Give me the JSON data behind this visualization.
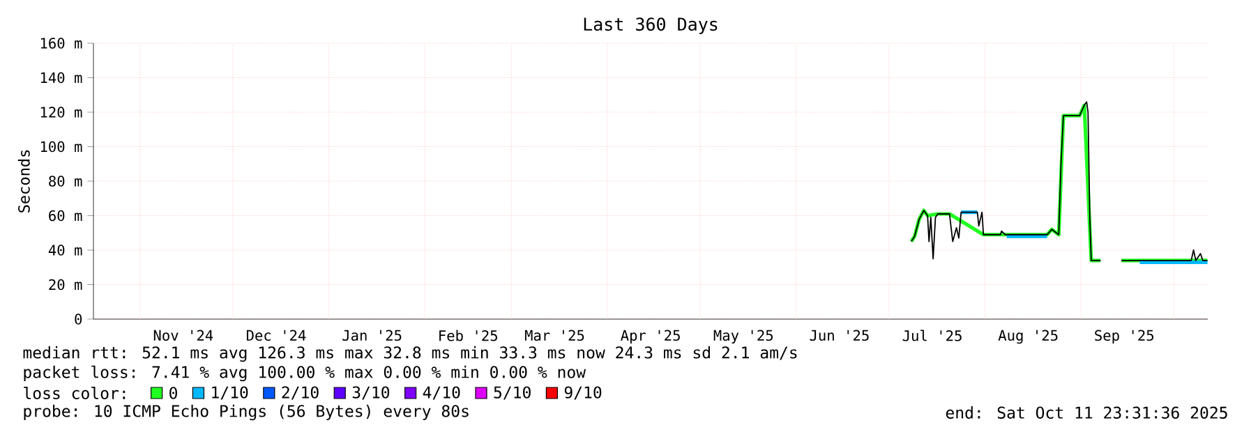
{
  "chart_data": {
    "type": "line",
    "title": "Last 360 Days",
    "ylabel": "Seconds",
    "xlim": [
      "2024-10-16T23:31",
      "2025-10-11T23:31"
    ],
    "xticks": [
      {
        "value": "2024-11-01",
        "label": null
      },
      {
        "value": "2024-12-01",
        "label": null
      },
      {
        "value": "2025-01-01",
        "label": null
      },
      {
        "value": "2025-02-01",
        "label": null
      },
      {
        "value": "2025-03-01",
        "label": null
      },
      {
        "value": "2025-04-01",
        "label": null
      },
      {
        "value": "2025-05-01",
        "label": null
      },
      {
        "value": "2025-06-01",
        "label": null
      },
      {
        "value": "2025-07-01",
        "label": null
      },
      {
        "value": "2025-08-01",
        "label": null
      },
      {
        "value": "2025-09-01",
        "label": null
      },
      {
        "value": "2025-10-01",
        "label": null
      },
      {
        "value": "2024-11-15",
        "label": "Nov '24"
      },
      {
        "value": "2024-12-15",
        "label": "Dec '24"
      },
      {
        "value": "2025-01-15",
        "label": "Jan '25"
      },
      {
        "value": "2025-02-15",
        "label": "Feb '25"
      },
      {
        "value": "2025-03-15",
        "label": "Mar '25"
      },
      {
        "value": "2025-04-15",
        "label": "Apr '25"
      },
      {
        "value": "2025-05-15",
        "label": "May '25"
      },
      {
        "value": "2025-06-15",
        "label": "Jun '25"
      },
      {
        "value": "2025-07-15",
        "label": "Jul '25"
      },
      {
        "value": "2025-08-15",
        "label": "Aug '25"
      },
      {
        "value": "2025-09-15",
        "label": "Sep '25"
      }
    ],
    "ylim": [
      0,
      160
    ],
    "yticks": [
      {
        "value": 0,
        "label": "0"
      },
      {
        "value": 20,
        "label": "20 m"
      },
      {
        "value": 40,
        "label": "40 m"
      },
      {
        "value": 60,
        "label": "60 m"
      },
      {
        "value": 80,
        "label": "80 m"
      },
      {
        "value": 100,
        "label": "100 m"
      },
      {
        "value": 120,
        "label": "120 m"
      },
      {
        "value": 140,
        "label": "140 m"
      },
      {
        "value": 160,
        "label": "160 m"
      }
    ],
    "grid": true,
    "legend": "bottom",
    "legend_title": "loss color:",
    "line_style": "solid",
    "series": [
      {
        "name": "0",
        "color": "#20ff20",
        "x": [
          "2025-07-08T05:00",
          "2025-07-09T06:00",
          "2025-07-10T18:00",
          "2025-07-12T06:00",
          "2025-07-13T11:00",
          "2025-07-16T18:00",
          "2025-07-20T13:00",
          "2025-07-31T12:00",
          "2025-08-21T02:00",
          "2025-08-22T14:00",
          "2025-08-24T20:00",
          "2025-08-26T08:00",
          "2025-08-31T14:00",
          "2025-09-02T02:00",
          "2025-09-04T08:00",
          "2025-09-07T08:00",
          "2025-09-10",
          "2025-09-14T02:00",
          "2025-10-11T21:00"
        ],
        "values": [
          45,
          48,
          58,
          63,
          60,
          61,
          61,
          49,
          49,
          52,
          49,
          118,
          118,
          124,
          34,
          34,
          null,
          34,
          34
        ]
      },
      {
        "name": "1/10",
        "color": "#00b8ff",
        "x": [
          "2025-07-24T07:00",
          "2025-07-29T13:00",
          "2025-08-02",
          "2025-08-08T00:00",
          "2025-08-21T02:00",
          "2025-09-02",
          "2025-09-20T00:00",
          "2025-10-11T21:00"
        ],
        "values": [
          62,
          62,
          null,
          48,
          48,
          null,
          33,
          33
        ]
      },
      {
        "name": "2/10",
        "color": "#0059ff"
      },
      {
        "name": "3/10",
        "color": "#5e00ff"
      },
      {
        "name": "4/10",
        "color": "#7e00ff"
      },
      {
        "name": "5/10",
        "color": "#dd00ff"
      },
      {
        "name": "9/10",
        "color": "#ff0000"
      },
      {
        "color": "#000000",
        "x": [
          "2025-07-08T05:00",
          "2025-07-09T06:00",
          "2025-07-10T18:00",
          "2025-07-12T06:00",
          "2025-07-13T11:00",
          "2025-07-13T22:00",
          "2025-07-14T12:00",
          "2025-07-15T06:00",
          "2025-07-16T00:00",
          "2025-07-16T18:00",
          "2025-07-20T13:00",
          "2025-07-21T14:00",
          "2025-07-22T19:00",
          "2025-07-23T13:00",
          "2025-07-24T07:00",
          "2025-07-29T13:00",
          "2025-07-30T00:00",
          "2025-07-31T01:00",
          "2025-07-31T12:00",
          "2025-08-06T01:00",
          "2025-08-06T08:00",
          "2025-08-07T13:00",
          "2025-08-21T02:00",
          "2025-08-22T14:00",
          "2025-08-24T20:00",
          "2025-08-25T14:00",
          "2025-08-26T08:00",
          "2025-08-31T14:00",
          "2025-09-02T02:00",
          "2025-09-02T20:00",
          "2025-09-03T07:00",
          "2025-09-03T21:00",
          "2025-09-04T08:00",
          "2025-09-07T08:00",
          "2025-09-10",
          "2025-09-14T02:00",
          "2025-09-26T03:00",
          "2025-10-06T15:00",
          "2025-10-07T09:00",
          "2025-10-08T03:00",
          "2025-10-09T15:00",
          "2025-10-10T09:00",
          "2025-10-11T21:00"
        ],
        "values": [
          45,
          48,
          58,
          63,
          60,
          45,
          59,
          35,
          59,
          61,
          61,
          45,
          53,
          47,
          62,
          62,
          54,
          62,
          49,
          49,
          51,
          49,
          49,
          52,
          49,
          91,
          118,
          118,
          124,
          126,
          120,
          58,
          34,
          34,
          null,
          34,
          34,
          34,
          40,
          34,
          38,
          34,
          34
        ]
      }
    ],
    "annotations": [
      "median rtt:  52.1 ms avg  126.3 ms max  32.8 ms min  33.3 ms now  24.3 ms sd  2.1   am/s",
      "packet loss: 7.41 % avg  100.00 % max  0.00 % min  0.00 % now",
      "probe:       10 ICMP Echo Pings (56 Bytes) every 80s",
      "end: Sat Oct 11 23:31:36 2025"
    ]
  }
}
